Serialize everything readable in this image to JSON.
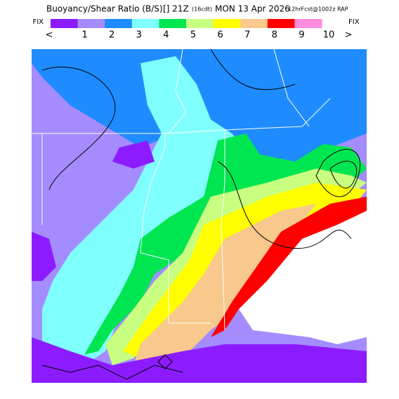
{
  "header": {
    "title": "Buoyancy/Shear Ratio (B/S)",
    "valid": "[] 21Z",
    "local": "(16cdt)",
    "date": "MON 13 Apr 2026",
    "source": "12hrFcst@1002z RAP"
  },
  "legend": {
    "left_button": "FIX",
    "right_button": "FIX",
    "prev": "<",
    "next": ">",
    "labels": [
      "1",
      "2",
      "3",
      "4",
      "5",
      "6",
      "7",
      "8",
      "9",
      "10"
    ],
    "colors": [
      "#8c1cff",
      "#a48cff",
      "#1e8cff",
      "#80ffff",
      "#00e650",
      "#c8ff80",
      "#ffff00",
      "#f8c88c",
      "#ff0000",
      "#ff8cdc"
    ]
  }
}
